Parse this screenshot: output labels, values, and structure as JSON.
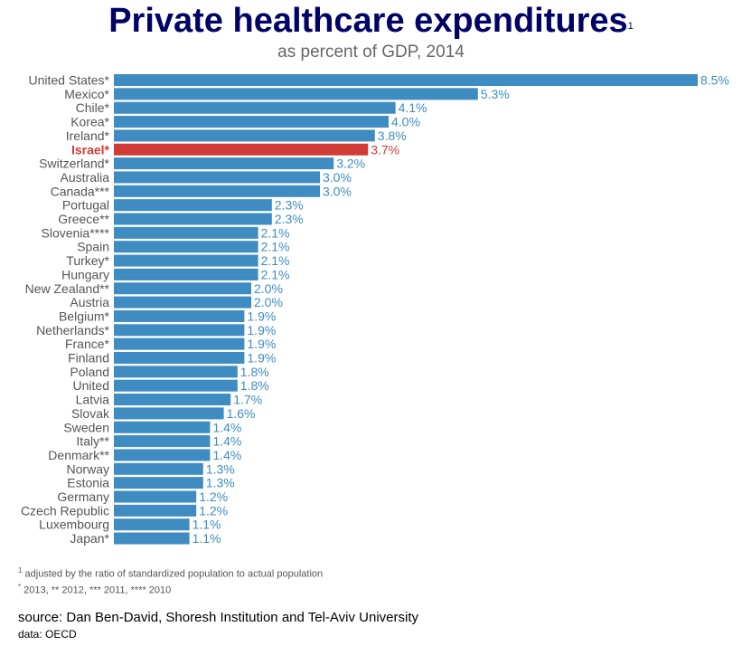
{
  "title": "Private healthcare expenditures",
  "title_sup": "1",
  "subtitle": "as percent of GDP, 2014",
  "colors": {
    "bar": "#3e8cc1",
    "highlight": "#d03c35",
    "label": "#555555"
  },
  "chart_data": {
    "type": "bar",
    "orientation": "horizontal",
    "title": "Private healthcare expenditures",
    "subtitle": "as percent of GDP, 2014",
    "value_suffix": "%",
    "highlight": "Israel*",
    "categories": [
      "United States*",
      "Mexico*",
      "Chile*",
      "Korea*",
      "Ireland*",
      "Israel*",
      "Switzerland*",
      "Australia",
      "Canada***",
      "Portugal",
      "Greece**",
      "Slovenia****",
      "Spain",
      "Turkey*",
      "Hungary",
      "New Zealand**",
      "Austria",
      "Belgium*",
      "Netherlands*",
      "France*",
      "Finland",
      "Poland",
      "United",
      "Latvia",
      "Slovak",
      "Sweden",
      "Italy**",
      "Denmark**",
      "Norway",
      "Estonia",
      "Germany",
      "Czech Republic",
      "Luxembourg",
      "Japan*"
    ],
    "values": [
      8.5,
      5.3,
      4.1,
      4.0,
      3.8,
      3.7,
      3.2,
      3.0,
      3.0,
      2.3,
      2.3,
      2.1,
      2.1,
      2.1,
      2.1,
      2.0,
      2.0,
      1.9,
      1.9,
      1.9,
      1.9,
      1.8,
      1.8,
      1.7,
      1.6,
      1.4,
      1.4,
      1.4,
      1.3,
      1.3,
      1.2,
      1.2,
      1.1,
      1.1
    ],
    "xlim": [
      0,
      8.5
    ],
    "grid": false
  },
  "footnotes": {
    "note1_mark": "1",
    "note1_text": " adjusted by the ratio of standardized population to actual population",
    "note2_mark": "*",
    "note2_text": " 2013, ** 2012, *** 2011, **** 2010"
  },
  "source": "source: Dan Ben-David, Shoresh Institution and Tel-Aviv University",
  "data_source": "data: OECD"
}
